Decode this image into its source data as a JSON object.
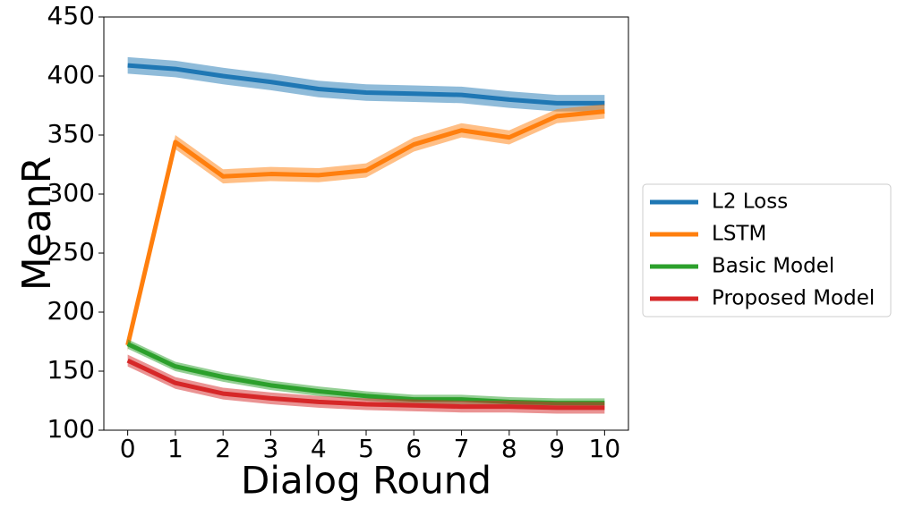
{
  "chart_data": {
    "type": "line",
    "x_label": "Dialog Round",
    "y_label": "MeanR",
    "x": [
      0,
      1,
      2,
      3,
      4,
      5,
      6,
      7,
      8,
      9,
      10
    ],
    "xlim": [
      -0.5,
      10.5
    ],
    "xticks": [
      0,
      1,
      2,
      3,
      4,
      5,
      6,
      7,
      8,
      9,
      10
    ],
    "ylim": [
      100,
      450
    ],
    "yticks": [
      100,
      150,
      200,
      250,
      300,
      350,
      400,
      450
    ],
    "legend": "outside-right",
    "series": [
      {
        "name": "L2 Loss",
        "color": "#1f77b4",
        "values": [
          409,
          406,
          400,
          395,
          389,
          386,
          385,
          384,
          380,
          377,
          377
        ],
        "errors": [
          7,
          7,
          7,
          7,
          7,
          7,
          7,
          7,
          7,
          7,
          7
        ]
      },
      {
        "name": "LSTM",
        "color": "#ff7f0e",
        "values": [
          172,
          344,
          315,
          317,
          316,
          320,
          342,
          354,
          348,
          366,
          370
        ],
        "errors": [
          5,
          6,
          6,
          6,
          6,
          6,
          6,
          6,
          6,
          6,
          6
        ]
      },
      {
        "name": "Basic Model",
        "color": "#2ca02c",
        "values": [
          173,
          154,
          145,
          138,
          133,
          129,
          126,
          126,
          124,
          123,
          123
        ],
        "errors": [
          4,
          4,
          4,
          4,
          4,
          4,
          4,
          4,
          4,
          4,
          4
        ]
      },
      {
        "name": "Proposed Model",
        "color": "#d62728",
        "values": [
          159,
          140,
          131,
          127,
          124,
          122,
          121,
          120,
          120,
          119,
          119
        ],
        "errors": [
          5,
          5,
          5,
          5,
          5,
          5,
          5,
          5,
          5,
          5,
          5
        ]
      }
    ]
  }
}
